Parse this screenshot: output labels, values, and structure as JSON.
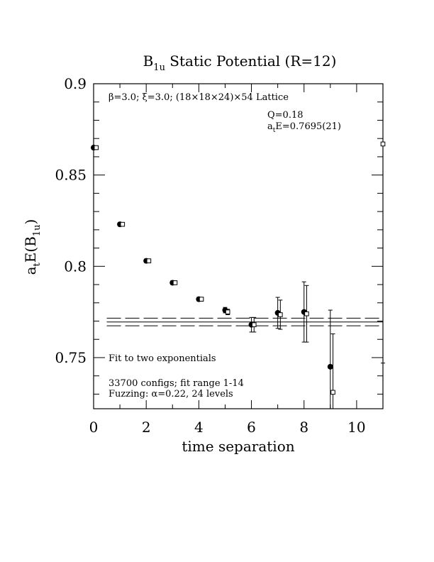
{
  "chart_data": {
    "type": "scatter",
    "title_main": "B",
    "title_sub": "1u",
    "title_rest": " Static Potential (R=12)",
    "xlabel": "time separation",
    "ylabel_main": "a",
    "ylabel_sub1": "t",
    "ylabel_mid": "E(B",
    "ylabel_sub2": "1u",
    "ylabel_end": ")",
    "xlim": [
      0,
      11
    ],
    "ylim": [
      0.722,
      0.9
    ],
    "x_ticks": [
      "0",
      "2",
      "4",
      "6",
      "8",
      "10"
    ],
    "x_tick_values": [
      0,
      2,
      4,
      6,
      8,
      10
    ],
    "y_ticks": [
      "0.9",
      "0.85",
      "0.8",
      "0.75"
    ],
    "y_tick_values": [
      0.9,
      0.85,
      0.8,
      0.75
    ],
    "annotations": {
      "lattice": "β=3.0; ξ=3.0; (18×18×24)×54 Lattice",
      "q_value": "Q=0.18",
      "fit_main": "a",
      "fit_sub": "t",
      "fit_rest": "E=0.7695(21)",
      "fit_label": "Fit to two exponentials",
      "configs": "33700 configs; fit range 1-14",
      "fuzzing": "Fuzzing: α=0.22, 24 levels"
    },
    "fit": {
      "center": 0.7695,
      "error": 0.0021,
      "x_range": [
        0.5,
        11
      ]
    },
    "series": [
      {
        "marker": "filled-circle",
        "x": [
          0,
          1,
          2,
          3,
          4,
          5,
          6,
          7,
          8,
          9
        ],
        "y": [
          0.865,
          0.823,
          0.803,
          0.791,
          0.782,
          0.776,
          0.768,
          0.7745,
          0.775,
          0.745
        ],
        "err": [
          0.001,
          0.001,
          0.001,
          0.001,
          0.001,
          0.0015,
          0.004,
          0.0085,
          0.0165,
          0.031
        ]
      },
      {
        "marker": "open-square",
        "x": [
          0.1,
          1.1,
          2.1,
          3.1,
          4.1,
          5.1,
          6.1,
          7.1,
          8.1,
          9.1,
          11.0
        ],
        "y": [
          0.865,
          0.823,
          0.803,
          0.791,
          0.782,
          0.775,
          0.768,
          0.7735,
          0.774,
          0.731,
          0.867
        ],
        "err": [
          0.001,
          0.001,
          0.001,
          0.001,
          0.001,
          0.0015,
          0.004,
          0.008,
          0.0155,
          0.032,
          0.12
        ]
      }
    ]
  }
}
